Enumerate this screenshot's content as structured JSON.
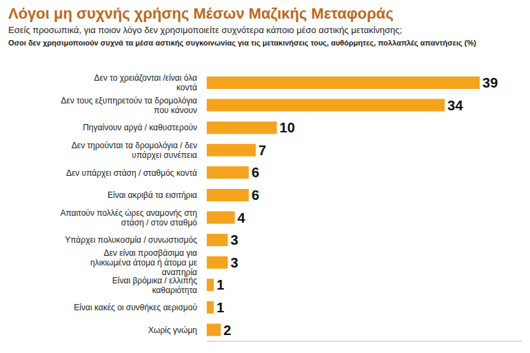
{
  "chart_data": {
    "type": "bar",
    "title": "Λόγοι μη συχνής χρήσης Μέσων Μαζικής Μεταφοράς",
    "subtitle": "Εσείς προσωπικά, για ποιον λόγο δεν χρησιμοποιείτε συχνότερα κάποιο μέσο αστικής μετακίνησης;",
    "note": "Οσοι δεν χρησιμοποιούν συχνά τα μέσα αστικής συγκοινωνίας για τις μετακινήσεις τους, αυθόρμητες, πολλαπλές απαντήσεις (%)",
    "categories": [
      "Δεν το χρειάζονται /είναι όλα κοντά",
      "Δεν τους εξυπηρετούν τα δρομολόγια που κάνουν",
      "Πηγαίνουν αργά / καθυστερούν",
      "Δεν τηρούνται τα δρομολόγια / δεν υπάρχει συνέπεια",
      "Δεν υπάρχει στάση / σταθμός κοντά",
      "Είναι ακριβά τα εισιτήρια",
      "Απαιτούν πολλές ώρες αναμονής στη στάση / στον σταθμό",
      "Υπάρχει πολυκοσμία / συνωστισμός",
      "Δεν είναι προσβάσιμα για ηλικιωμένα άτομα ή άτομα με αναπηρία",
      "Είναι βρόμικα / ελλιπής καθαριότητα",
      "Είναι κακές οι συνθήκες αερισμού",
      "Χωρίς γνώμη"
    ],
    "values": [
      39,
      34,
      10,
      7,
      6,
      6,
      4,
      3,
      3,
      1,
      1,
      2
    ],
    "color": "#f5a31c",
    "orientation": "horizontal",
    "data_labels": true,
    "tick_labels": false,
    "xlim": [
      0,
      45
    ],
    "xticks": []
  }
}
